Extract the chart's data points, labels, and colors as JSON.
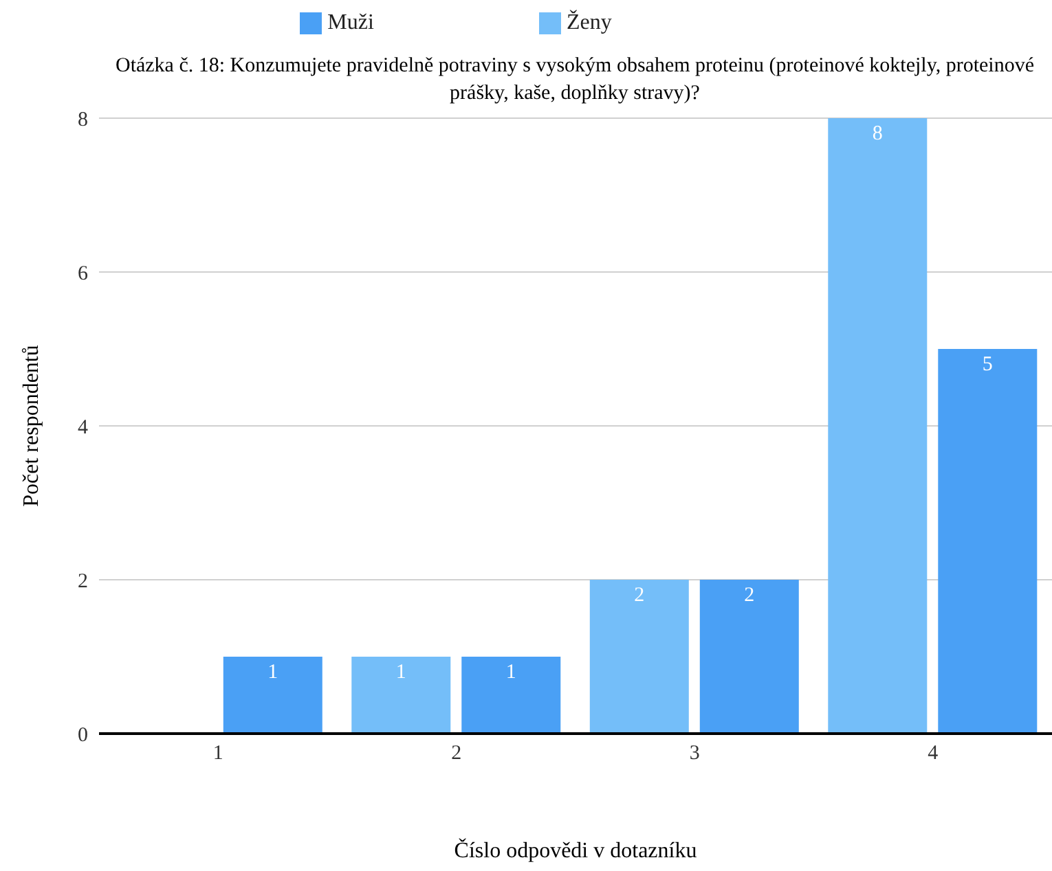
{
  "chart_data": {
    "type": "bar",
    "title": "Otázka č. 18: Konzumujete pravidelně potraviny s vysokým obsahem proteinu (proteinové koktejly, proteinové prášky, kaše, doplňky stravy)?",
    "xlabel": "Číslo odpovědi v dotazníku",
    "ylabel": "Počet respondentů",
    "categories": [
      "1",
      "2",
      "3",
      "4"
    ],
    "series": [
      {
        "name": "Ženy",
        "color": "#74bef9",
        "values": [
          null,
          1,
          2,
          8
        ]
      },
      {
        "name": "Muži",
        "color": "#4aa0f5",
        "values": [
          1,
          1,
          2,
          5
        ]
      }
    ],
    "ylim": [
      0,
      8
    ],
    "yticks": [
      0,
      2,
      4,
      6,
      8
    ],
    "grid": "y",
    "legend": "top",
    "data_labels": true
  }
}
